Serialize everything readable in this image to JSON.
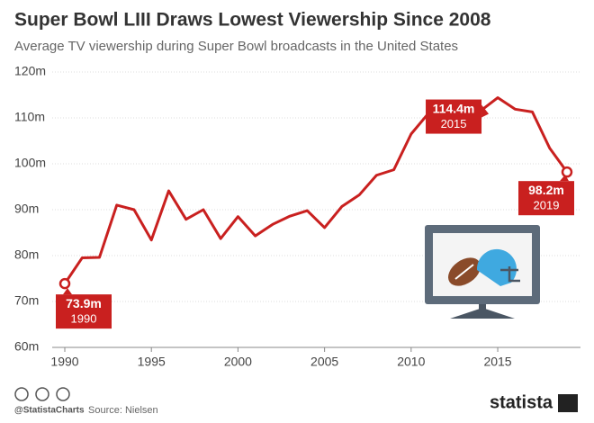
{
  "chart_data": {
    "type": "line",
    "title": "Super Bowl LIII Draws Lowest Viewership Since 2008",
    "subtitle": "Average TV viewership during Super Bowl broadcasts in the United States",
    "x": [
      1990,
      1991,
      1992,
      1993,
      1994,
      1995,
      1996,
      1997,
      1998,
      1999,
      2000,
      2001,
      2002,
      2003,
      2004,
      2005,
      2006,
      2007,
      2008,
      2009,
      2010,
      2011,
      2012,
      2013,
      2014,
      2015,
      2016,
      2017,
      2018,
      2019
    ],
    "values": [
      73.9,
      79.5,
      79.6,
      91.0,
      90.0,
      83.4,
      94.1,
      87.9,
      90.0,
      83.7,
      88.5,
      84.3,
      86.8,
      88.6,
      89.8,
      86.1,
      90.7,
      93.2,
      97.5,
      98.7,
      106.5,
      111.0,
      111.3,
      108.4,
      111.5,
      114.4,
      111.9,
      111.3,
      103.4,
      98.2
    ],
    "value_labels": [
      "73.9m",
      null,
      null,
      null,
      null,
      null,
      null,
      null,
      null,
      null,
      null,
      null,
      null,
      null,
      null,
      null,
      null,
      null,
      null,
      null,
      null,
      null,
      null,
      null,
      null,
      "114.4m",
      null,
      null,
      null,
      "98.2m"
    ],
    "color": "#c9201f",
    "xlim": [
      1990,
      2019
    ],
    "xticks": [
      1990,
      1995,
      2000,
      2005,
      2010,
      2015
    ],
    "ylim": [
      60,
      120
    ],
    "yticks": [
      {
        "value": 60,
        "label": "60m"
      },
      {
        "value": 70,
        "label": "70m"
      },
      {
        "value": 80,
        "label": "80m"
      },
      {
        "value": 90,
        "label": "90m"
      },
      {
        "value": 100,
        "label": "100m"
      },
      {
        "value": 110,
        "label": "110m"
      },
      {
        "value": 120,
        "label": "120m"
      }
    ],
    "grid": true,
    "credit": "@StatistaCharts",
    "source": "Source: Nielsen",
    "brand": "statista"
  }
}
